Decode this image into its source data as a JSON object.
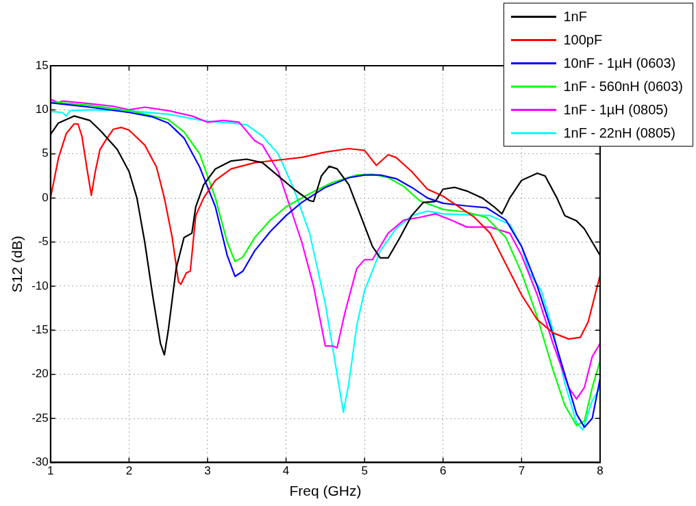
{
  "chart_data": {
    "type": "line",
    "xlabel": "Freq (GHz)",
    "ylabel": "S12 (dB)",
    "xlim": [
      1,
      8
    ],
    "xticks": [
      1,
      2,
      3,
      4,
      5,
      6,
      7,
      8
    ],
    "ylim": [
      -30,
      15
    ],
    "yticks": [
      -30,
      -25,
      -20,
      -15,
      -10,
      -5,
      0,
      5,
      10,
      15
    ],
    "grid": true,
    "legend": "top right",
    "marker": "none",
    "line_style": "solid",
    "series": [
      {
        "name": "1nF",
        "color": "#000000",
        "x": [
          1,
          1.1,
          1.3,
          1.5,
          1.65,
          1.7,
          1.85,
          2.0,
          2.1,
          2.2,
          2.3,
          2.4,
          2.45,
          2.5,
          2.6,
          2.7,
          2.8,
          2.85,
          2.95,
          3.1,
          3.3,
          3.5,
          3.7,
          3.9,
          4.1,
          4.3,
          4.35,
          4.45,
          4.55,
          4.65,
          4.8,
          4.95,
          5.1,
          5.2,
          5.3,
          5.45,
          5.6,
          5.75,
          5.9,
          6.0,
          6.15,
          6.3,
          6.5,
          6.65,
          6.75,
          6.85,
          7.0,
          7.2,
          7.3,
          7.45,
          7.55,
          7.7,
          7.8,
          7.9,
          8.0
        ],
        "values": [
          7.2,
          8.5,
          9.3,
          8.8,
          7.5,
          7.0,
          5.5,
          3.0,
          0,
          -5,
          -11,
          -16.5,
          -17.8,
          -15,
          -8,
          -4.5,
          -4.0,
          -1,
          1.5,
          3.3,
          4.2,
          4.4,
          4.0,
          2.5,
          1.0,
          -0.3,
          -0.4,
          2.5,
          3.6,
          3.3,
          1.5,
          -2,
          -5.5,
          -6.8,
          -6.8,
          -4.5,
          -2,
          -0.5,
          -0.4,
          1.0,
          1.2,
          0.8,
          0,
          -1.0,
          -1.8,
          0,
          2.0,
          2.8,
          2.5,
          0,
          -2.0,
          -2.6,
          -3.5,
          -5.0,
          -6.5
        ]
      },
      {
        "name": "100pF",
        "color": "#ff0000",
        "x": [
          1.0,
          1.1,
          1.2,
          1.3,
          1.35,
          1.4,
          1.47,
          1.52,
          1.57,
          1.63,
          1.7,
          1.8,
          1.9,
          2.0,
          2.2,
          2.35,
          2.45,
          2.55,
          2.63,
          2.66,
          2.73,
          2.78,
          2.85,
          2.95,
          3.1,
          3.3,
          3.6,
          3.9,
          4.2,
          4.5,
          4.8,
          5.0,
          5.15,
          5.3,
          5.4,
          5.6,
          5.8,
          6.0,
          6.2,
          6.4,
          6.6,
          6.8,
          7.0,
          7.2,
          7.4,
          7.6,
          7.75,
          7.85,
          7.95,
          8.0
        ],
        "values": [
          0,
          4.5,
          7.3,
          8.4,
          8.4,
          7.0,
          3,
          0.3,
          3,
          5.5,
          6.5,
          7.8,
          8.0,
          7.7,
          6.0,
          3.5,
          0,
          -4.5,
          -9.5,
          -9.8,
          -8.5,
          -8.3,
          -2,
          0,
          2.0,
          3.3,
          4.0,
          4.3,
          4.6,
          5.2,
          5.6,
          5.4,
          3.7,
          4.9,
          4.6,
          3.0,
          1.0,
          0.2,
          -1.0,
          -2.2,
          -4.0,
          -7.5,
          -11.0,
          -13.8,
          -15.3,
          -16.0,
          -15.8,
          -14,
          -10.5,
          -8.8
        ]
      },
      {
        "name": "10nF - 1µH (0603)",
        "color": "#0000ff",
        "x": [
          1.0,
          1.5,
          2.0,
          2.3,
          2.5,
          2.7,
          2.9,
          3.1,
          3.25,
          3.35,
          3.45,
          3.6,
          3.8,
          4.0,
          4.2,
          4.5,
          4.8,
          5.0,
          5.2,
          5.4,
          5.6,
          5.8,
          6.0,
          6.3,
          6.55,
          6.8,
          7.0,
          7.2,
          7.4,
          7.55,
          7.7,
          7.8,
          7.9,
          8.0
        ],
        "values": [
          10.8,
          10.3,
          9.7,
          9.2,
          8.5,
          6.8,
          3.5,
          -1,
          -6.5,
          -8.9,
          -8.3,
          -6,
          -3.8,
          -2.0,
          -0.5,
          1.2,
          2.3,
          2.6,
          2.6,
          2.2,
          1.2,
          0,
          -0.6,
          -0.9,
          -1.1,
          -2.5,
          -5.5,
          -10,
          -15.5,
          -20,
          -24.5,
          -26,
          -25,
          -20.5
        ]
      },
      {
        "name": "1nF - 560nH (0603)",
        "color": "#00ff00",
        "x": [
          1.0,
          1.5,
          2.0,
          2.5,
          2.7,
          2.9,
          3.1,
          3.25,
          3.35,
          3.45,
          3.6,
          3.8,
          4.0,
          4.3,
          4.6,
          4.9,
          5.1,
          5.3,
          5.5,
          5.7,
          6.0,
          6.3,
          6.55,
          6.8,
          7.0,
          7.2,
          7.4,
          7.55,
          7.7,
          7.8,
          7.9,
          8.0
        ],
        "values": [
          10.9,
          10.5,
          9.9,
          8.9,
          7.5,
          5.0,
          0,
          -5,
          -7.2,
          -6.7,
          -4.5,
          -2.5,
          -1.0,
          0.5,
          1.8,
          2.6,
          2.7,
          2.3,
          1.3,
          -0.3,
          -1.3,
          -1.6,
          -2.2,
          -4.5,
          -8.5,
          -13.5,
          -19.5,
          -23.5,
          -25.8,
          -25.3,
          -21.5,
          -18.5
        ]
      },
      {
        "name": "1nF - 1µH (0805)",
        "color": "#ff00ff",
        "x": [
          1.0,
          1.1,
          1.15,
          1.5,
          1.8,
          2.0,
          2.2,
          2.5,
          2.8,
          3.0,
          3.2,
          3.4,
          3.6,
          3.7,
          3.9,
          4.05,
          4.2,
          4.35,
          4.5,
          4.6,
          4.65,
          4.75,
          4.9,
          5.0,
          5.1,
          5.3,
          5.5,
          5.7,
          5.9,
          6.1,
          6.3,
          6.6,
          6.85,
          7.0,
          7.2,
          7.4,
          7.6,
          7.7,
          7.8,
          7.9,
          8.0
        ],
        "values": [
          11.2,
          10.8,
          11.0,
          10.7,
          10.4,
          10.0,
          10.3,
          9.9,
          9.3,
          8.6,
          8.8,
          8.6,
          6.5,
          6.0,
          3.0,
          -1,
          -5,
          -10,
          -16.8,
          -16.8,
          -17,
          -13,
          -8,
          -7.0,
          -7.0,
          -4.0,
          -2.5,
          -2.2,
          -1.8,
          -2.5,
          -3.3,
          -3.3,
          -4.0,
          -6.5,
          -11.0,
          -16.5,
          -21.5,
          -22.8,
          -21.5,
          -18,
          -16.5
        ]
      },
      {
        "name": "1nF - 22nH (0805)",
        "color": "#00ffff",
        "x": [
          1.0,
          1.15,
          1.2,
          1.25,
          1.5,
          2.0,
          2.5,
          2.8,
          3.0,
          3.3,
          3.5,
          3.7,
          3.9,
          4.1,
          4.3,
          4.5,
          4.65,
          4.73,
          4.8,
          4.9,
          5.0,
          5.2,
          5.4,
          5.6,
          5.8,
          6.0,
          6.3,
          6.6,
          6.85,
          7.0,
          7.1,
          7.25,
          7.4,
          7.55,
          7.7,
          7.78,
          7.9,
          8.0
        ],
        "values": [
          9.8,
          9.7,
          9.3,
          9.9,
          10.0,
          9.9,
          9.5,
          9.0,
          8.7,
          8.5,
          8.3,
          7.0,
          5.0,
          1.0,
          -4,
          -12,
          -20,
          -24.3,
          -21,
          -14.5,
          -10.5,
          -6,
          -3.5,
          -2.0,
          -1.5,
          -1.8,
          -1.9,
          -2.0,
          -3.0,
          -5.5,
          -8.5,
          -10.5,
          -15,
          -21,
          -25.5,
          -26.3,
          -23,
          -21.5
        ]
      }
    ]
  }
}
